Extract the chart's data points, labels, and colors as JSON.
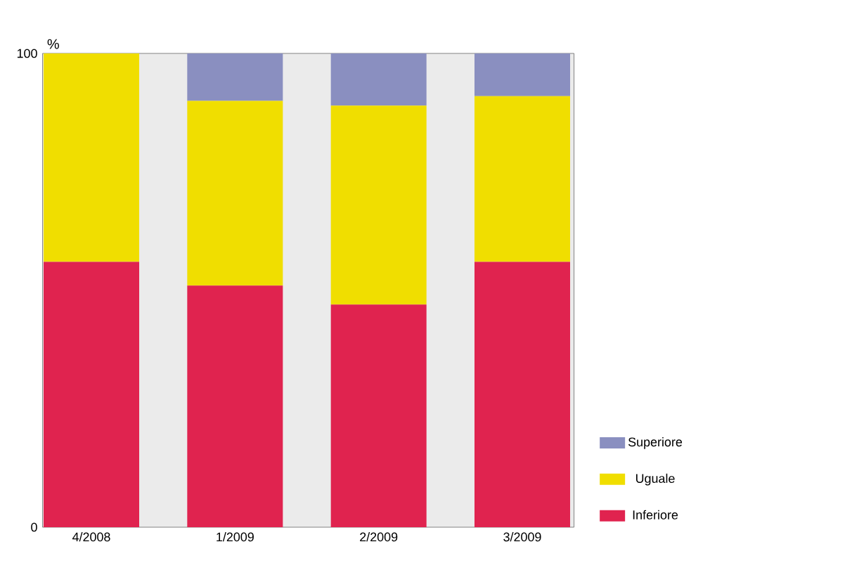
{
  "chart_data": {
    "type": "bar",
    "stacked": true,
    "ylabel": "%",
    "categories": [
      "4/2008",
      "1/2009",
      "2/2009",
      "3/2009"
    ],
    "series": [
      {
        "name": "Inferiore",
        "color": "#e0234f",
        "values": [
          56,
          51,
          47,
          56
        ]
      },
      {
        "name": "Uguale",
        "color": "#f0de00",
        "values": [
          44,
          39,
          42,
          35
        ]
      },
      {
        "name": "Superiore",
        "color": "#8a8fc0",
        "values": [
          0,
          10,
          11,
          9
        ]
      }
    ],
    "ylim": [
      0,
      100
    ],
    "yticks": [
      0,
      100
    ],
    "legend": "bottom right"
  }
}
